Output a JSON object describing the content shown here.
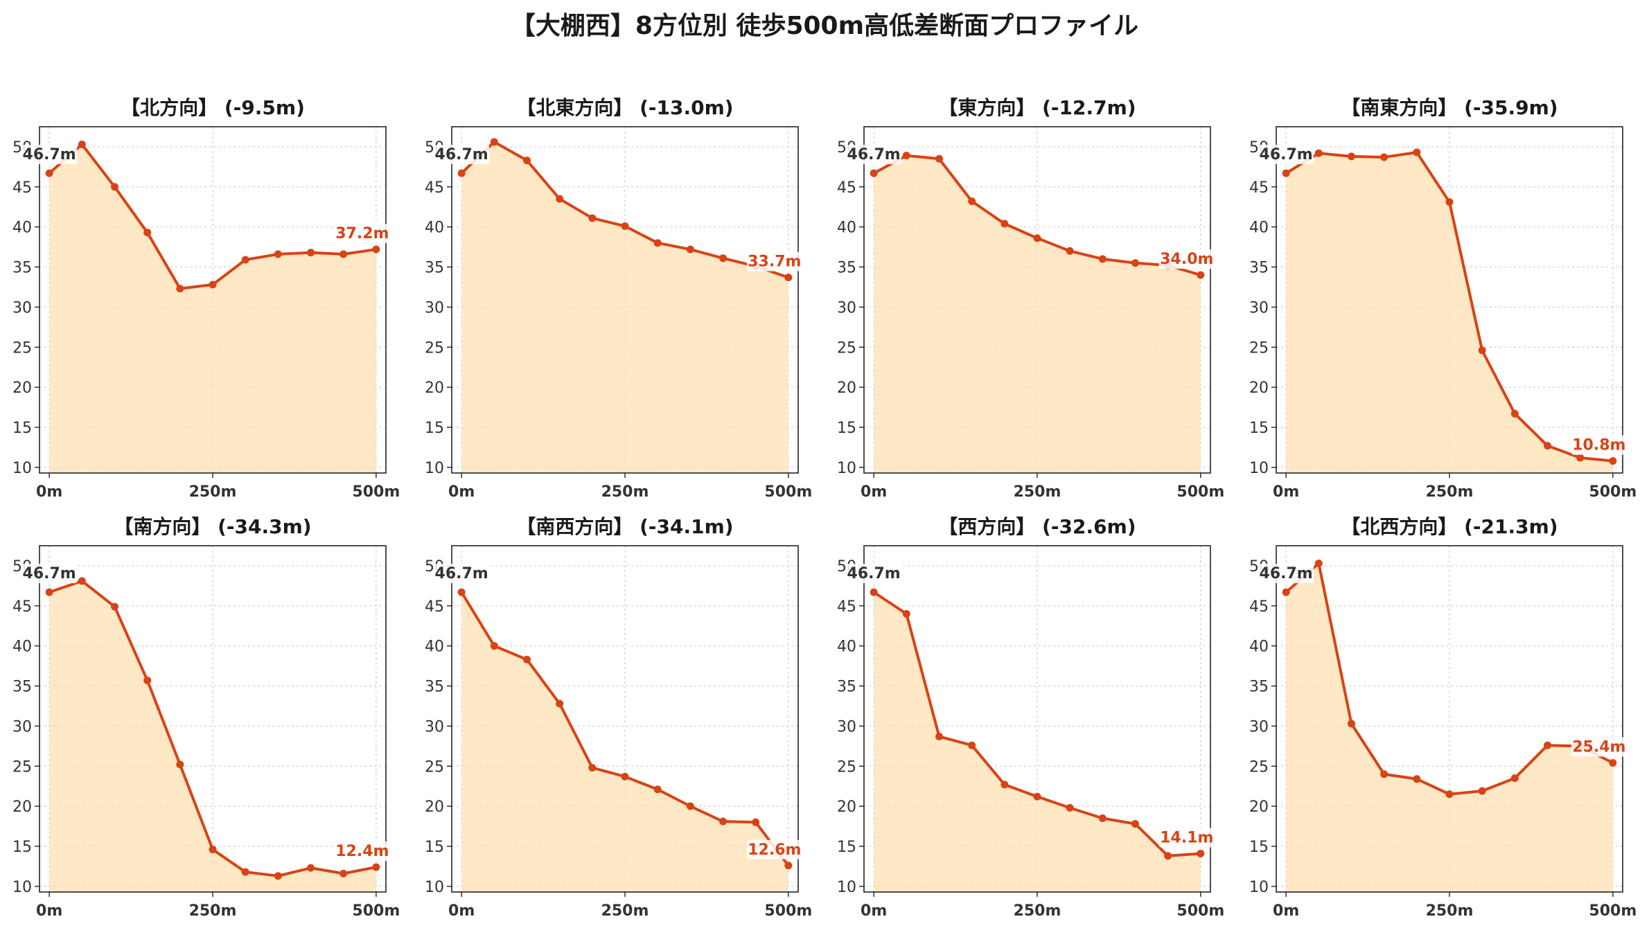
{
  "title": "【大棚西】8方位別 徒歩500m高低差断面プロファイル",
  "colors": {
    "line": "#d84315",
    "fill": "#ffe0b2",
    "start_label": "#333333",
    "end_label": "#d84315",
    "grid": "#cccccc"
  },
  "chart_data": [
    {
      "type": "area",
      "title": "【北方向】 (-9.5m)",
      "x": [
        0,
        50,
        100,
        150,
        200,
        250,
        300,
        350,
        400,
        450,
        500
      ],
      "y": [
        46.7,
        50.3,
        45.0,
        39.3,
        32.3,
        32.8,
        35.9,
        36.6,
        36.8,
        36.6,
        37.2
      ],
      "start_label": "46.7m",
      "end_label": "37.2m",
      "xticks": [
        "0m",
        "250m",
        "500m"
      ],
      "yticks": [
        10,
        15,
        20,
        25,
        30,
        35,
        40,
        45,
        50
      ],
      "xlim": [
        -15,
        515
      ],
      "ylim": [
        9.3,
        52.5
      ],
      "grid": true
    },
    {
      "type": "area",
      "title": "【北東方向】 (-13.0m)",
      "x": [
        0,
        50,
        100,
        150,
        200,
        250,
        300,
        350,
        400,
        450,
        500
      ],
      "y": [
        46.7,
        50.6,
        48.3,
        43.5,
        41.1,
        40.1,
        38.0,
        37.2,
        36.1,
        35.1,
        33.7
      ],
      "start_label": "46.7m",
      "end_label": "33.7m",
      "xticks": [
        "0m",
        "250m",
        "500m"
      ],
      "yticks": [
        10,
        15,
        20,
        25,
        30,
        35,
        40,
        45,
        50
      ],
      "xlim": [
        -15,
        515
      ],
      "ylim": [
        9.3,
        52.5
      ],
      "grid": true
    },
    {
      "type": "area",
      "title": "【東方向】 (-12.7m)",
      "x": [
        0,
        50,
        100,
        150,
        200,
        250,
        300,
        350,
        400,
        450,
        500
      ],
      "y": [
        46.7,
        48.9,
        48.5,
        43.2,
        40.4,
        38.6,
        37.0,
        36.0,
        35.5,
        35.2,
        34.0
      ],
      "start_label": "46.7m",
      "end_label": "34.0m",
      "xticks": [
        "0m",
        "250m",
        "500m"
      ],
      "yticks": [
        10,
        15,
        20,
        25,
        30,
        35,
        40,
        45,
        50
      ],
      "xlim": [
        -15,
        515
      ],
      "ylim": [
        9.3,
        52.5
      ],
      "grid": true
    },
    {
      "type": "area",
      "title": "【南東方向】 (-35.9m)",
      "x": [
        0,
        50,
        100,
        150,
        200,
        250,
        300,
        350,
        400,
        450,
        500
      ],
      "y": [
        46.7,
        49.2,
        48.8,
        48.7,
        49.3,
        43.1,
        24.6,
        16.7,
        12.7,
        11.2,
        10.8
      ],
      "start_label": "46.7m",
      "end_label": "10.8m",
      "xticks": [
        "0m",
        "250m",
        "500m"
      ],
      "yticks": [
        10,
        15,
        20,
        25,
        30,
        35,
        40,
        45,
        50
      ],
      "xlim": [
        -15,
        515
      ],
      "ylim": [
        9.3,
        52.5
      ],
      "grid": true
    },
    {
      "type": "area",
      "title": "【南方向】 (-34.3m)",
      "x": [
        0,
        50,
        100,
        150,
        200,
        250,
        300,
        350,
        400,
        450,
        500
      ],
      "y": [
        46.7,
        48.1,
        44.9,
        35.7,
        25.2,
        14.6,
        11.8,
        11.3,
        12.3,
        11.6,
        12.4
      ],
      "start_label": "46.7m",
      "end_label": "12.4m",
      "xticks": [
        "0m",
        "250m",
        "500m"
      ],
      "yticks": [
        10,
        15,
        20,
        25,
        30,
        35,
        40,
        45,
        50
      ],
      "xlim": [
        -15,
        515
      ],
      "ylim": [
        9.3,
        52.5
      ],
      "grid": true
    },
    {
      "type": "area",
      "title": "【南西方向】 (-34.1m)",
      "x": [
        0,
        50,
        100,
        150,
        200,
        250,
        300,
        350,
        400,
        450,
        500
      ],
      "y": [
        46.7,
        40.0,
        38.3,
        32.8,
        24.8,
        23.7,
        22.1,
        20.0,
        18.1,
        18.0,
        12.6
      ],
      "start_label": "46.7m",
      "end_label": "12.6m",
      "xticks": [
        "0m",
        "250m",
        "500m"
      ],
      "yticks": [
        10,
        15,
        20,
        25,
        30,
        35,
        40,
        45,
        50
      ],
      "xlim": [
        -15,
        515
      ],
      "ylim": [
        9.3,
        52.5
      ],
      "grid": true
    },
    {
      "type": "area",
      "title": "【西方向】 (-32.6m)",
      "x": [
        0,
        50,
        100,
        150,
        200,
        250,
        300,
        350,
        400,
        450,
        500
      ],
      "y": [
        46.7,
        44.0,
        28.7,
        27.6,
        22.7,
        21.2,
        19.8,
        18.5,
        17.8,
        13.8,
        14.1
      ],
      "start_label": "46.7m",
      "end_label": "14.1m",
      "xticks": [
        "0m",
        "250m",
        "500m"
      ],
      "yticks": [
        10,
        15,
        20,
        25,
        30,
        35,
        40,
        45,
        50
      ],
      "xlim": [
        -15,
        515
      ],
      "ylim": [
        9.3,
        52.5
      ],
      "grid": true
    },
    {
      "type": "area",
      "title": "【北西方向】 (-21.3m)",
      "x": [
        0,
        50,
        100,
        150,
        200,
        250,
        300,
        350,
        400,
        450,
        500
      ],
      "y": [
        46.7,
        50.3,
        30.3,
        24.0,
        23.4,
        21.5,
        21.9,
        23.5,
        27.6,
        27.5,
        25.4
      ],
      "start_label": "46.7m",
      "end_label": "25.4m",
      "xticks": [
        "0m",
        "250m",
        "500m"
      ],
      "yticks": [
        10,
        15,
        20,
        25,
        30,
        35,
        40,
        45,
        50
      ],
      "xlim": [
        -15,
        515
      ],
      "ylim": [
        9.3,
        52.5
      ],
      "grid": true
    }
  ]
}
